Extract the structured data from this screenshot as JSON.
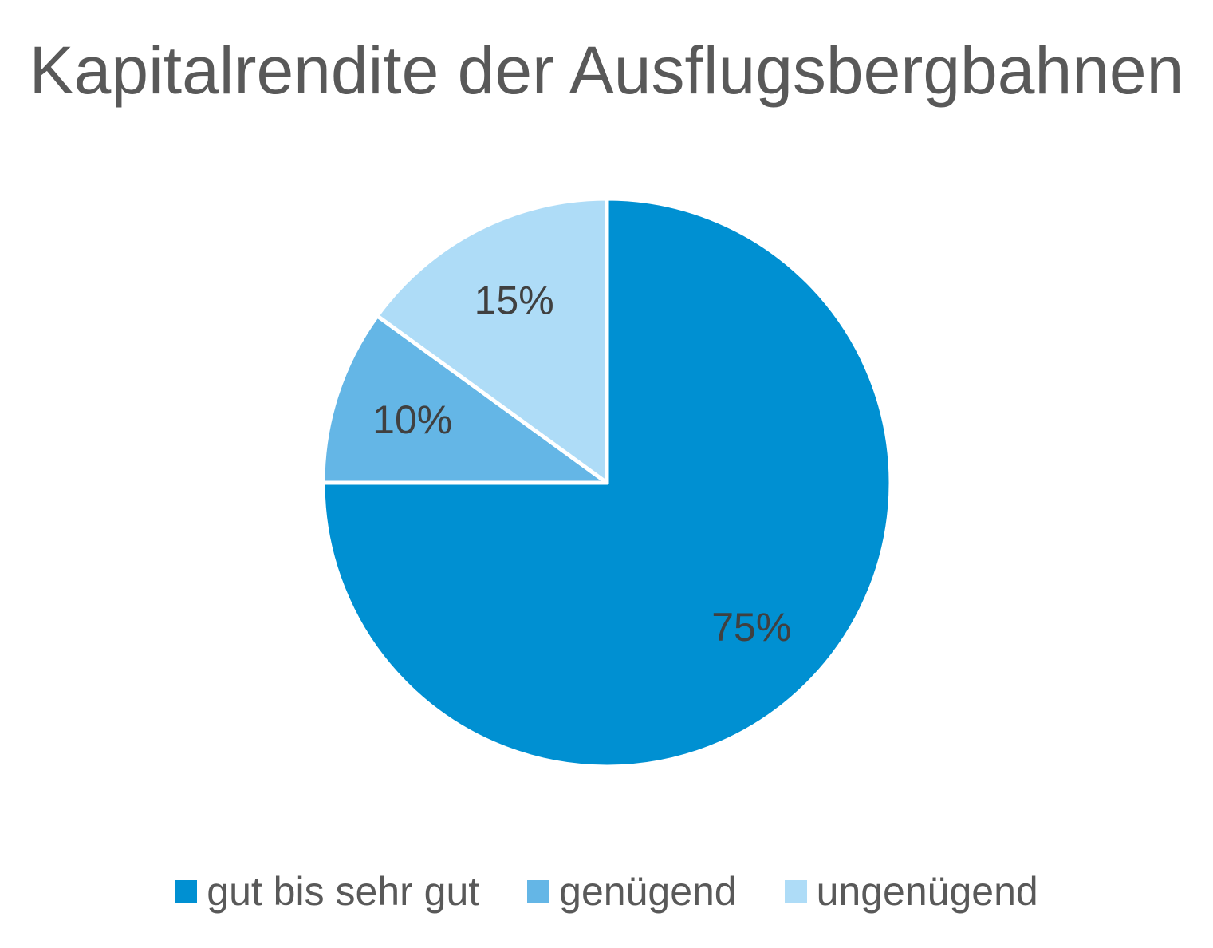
{
  "chart_data": {
    "type": "pie",
    "title": "Kapitalrendite der Ausflugsbergbahnen",
    "slices": [
      {
        "name": "gut bis sehr gut",
        "value": 75,
        "label": "75%",
        "color": "#0090D2"
      },
      {
        "name": "genügend",
        "value": 10,
        "label": "10%",
        "color": "#64B6E6"
      },
      {
        "name": "ungenügend",
        "value": 15,
        "label": "15%",
        "color": "#AEDCF7"
      }
    ],
    "start_angle_deg": 0,
    "direction": "clockwise",
    "legend_position": "bottom"
  }
}
